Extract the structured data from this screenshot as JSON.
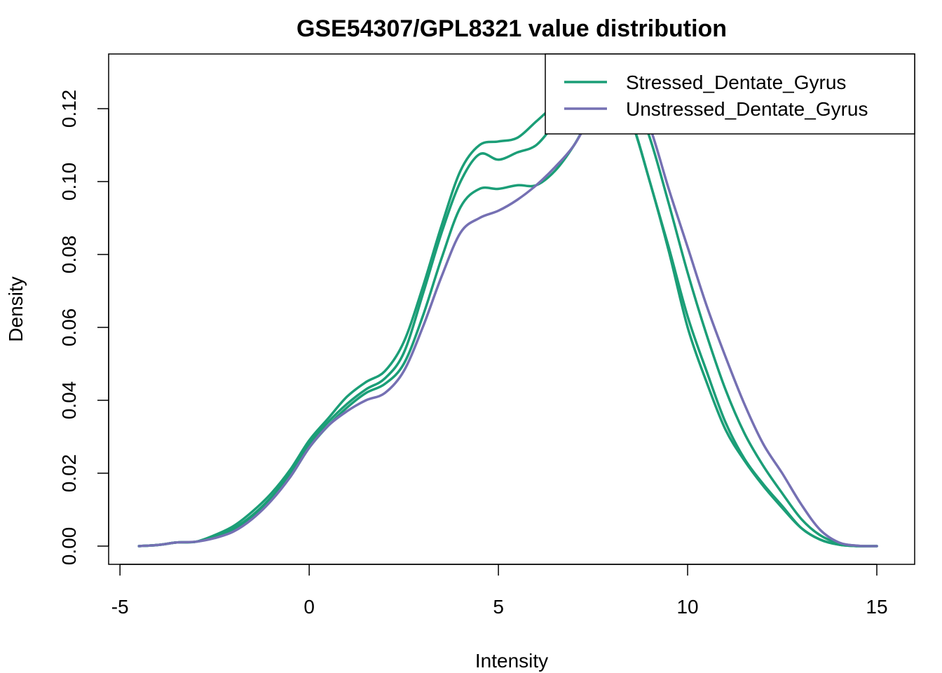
{
  "chart_data": {
    "type": "line",
    "title": "GSE54307/GPL8321 value distribution",
    "xlabel": "Intensity",
    "ylabel": "Density",
    "xlim": [
      -5.3,
      16.0
    ],
    "ylim": [
      -0.005,
      0.135
    ],
    "xticks": [
      -5,
      0,
      5,
      10,
      15
    ],
    "yticks": [
      0.0,
      0.02,
      0.04,
      0.06,
      0.08,
      0.1,
      0.12
    ],
    "xtick_labels": [
      "-5",
      "0",
      "5",
      "10",
      "15"
    ],
    "ytick_labels": [
      "0.00",
      "0.02",
      "0.04",
      "0.06",
      "0.08",
      "0.10",
      "0.12"
    ],
    "grid": false,
    "legend": {
      "position": "top-right",
      "entries": [
        {
          "label": "Stressed_Dentate_Gyrus",
          "color": "#1b9e77"
        },
        {
          "label": "Unstressed_Dentate_Gyrus",
          "color": "#7570b3"
        }
      ]
    },
    "series": [
      {
        "group": "Stressed_Dentate_Gyrus",
        "color": "#1b9e77",
        "points": [
          [
            -4.5,
            0.0
          ],
          [
            -4.0,
            0.0003
          ],
          [
            -3.5,
            0.001
          ],
          [
            -3.0,
            0.0012
          ],
          [
            -2.5,
            0.003
          ],
          [
            -2.0,
            0.0055
          ],
          [
            -1.5,
            0.0095
          ],
          [
            -1.0,
            0.0145
          ],
          [
            -0.5,
            0.021
          ],
          [
            0.0,
            0.029
          ],
          [
            0.5,
            0.035
          ],
          [
            1.0,
            0.041
          ],
          [
            1.5,
            0.045
          ],
          [
            2.0,
            0.048
          ],
          [
            2.5,
            0.056
          ],
          [
            3.0,
            0.071
          ],
          [
            3.5,
            0.088
          ],
          [
            4.0,
            0.103
          ],
          [
            4.5,
            0.11
          ],
          [
            5.0,
            0.111
          ],
          [
            5.5,
            0.112
          ],
          [
            6.0,
            0.1165
          ],
          [
            6.5,
            0.121
          ],
          [
            7.0,
            0.124
          ],
          [
            7.5,
            0.126
          ],
          [
            8.0,
            0.126
          ],
          [
            8.5,
            0.117
          ],
          [
            9.0,
            0.1
          ],
          [
            9.5,
            0.082
          ],
          [
            10.0,
            0.063
          ],
          [
            10.5,
            0.048
          ],
          [
            11.0,
            0.034
          ],
          [
            11.5,
            0.024
          ],
          [
            12.0,
            0.017
          ],
          [
            12.5,
            0.011
          ],
          [
            13.0,
            0.005
          ],
          [
            13.5,
            0.0018
          ],
          [
            14.0,
            0.0004
          ],
          [
            14.5,
            0.0
          ],
          [
            15.0,
            0.0
          ]
        ]
      },
      {
        "group": "Stressed_Dentate_Gyrus",
        "color": "#1b9e77",
        "points": [
          [
            -4.5,
            0.0
          ],
          [
            -4.0,
            0.0003
          ],
          [
            -3.5,
            0.001
          ],
          [
            -3.0,
            0.0012
          ],
          [
            -2.5,
            0.0025
          ],
          [
            -2.0,
            0.0048
          ],
          [
            -1.5,
            0.0085
          ],
          [
            -1.0,
            0.0135
          ],
          [
            -0.5,
            0.02
          ],
          [
            0.0,
            0.028
          ],
          [
            0.5,
            0.034
          ],
          [
            1.0,
            0.039
          ],
          [
            1.5,
            0.043
          ],
          [
            2.0,
            0.046
          ],
          [
            2.5,
            0.053
          ],
          [
            3.0,
            0.069
          ],
          [
            3.5,
            0.086
          ],
          [
            4.0,
            0.1
          ],
          [
            4.5,
            0.1075
          ],
          [
            5.0,
            0.106
          ],
          [
            5.5,
            0.108
          ],
          [
            6.0,
            0.11
          ],
          [
            6.5,
            0.116
          ],
          [
            7.0,
            0.122
          ],
          [
            7.5,
            0.125
          ],
          [
            8.0,
            0.125
          ],
          [
            8.5,
            0.117
          ],
          [
            9.0,
            0.1
          ],
          [
            9.5,
            0.081
          ],
          [
            10.0,
            0.06
          ],
          [
            10.5,
            0.045
          ],
          [
            11.0,
            0.032
          ],
          [
            11.5,
            0.0235
          ],
          [
            12.0,
            0.0165
          ],
          [
            12.5,
            0.0105
          ],
          [
            13.0,
            0.005
          ],
          [
            13.5,
            0.0018
          ],
          [
            14.0,
            0.0004
          ],
          [
            14.5,
            0.0
          ],
          [
            15.0,
            0.0
          ]
        ]
      },
      {
        "group": "Stressed_Dentate_Gyrus",
        "color": "#1b9e77",
        "points": [
          [
            -4.5,
            0.0
          ],
          [
            -4.0,
            0.0003
          ],
          [
            -3.5,
            0.001
          ],
          [
            -3.0,
            0.0012
          ],
          [
            -2.5,
            0.0025
          ],
          [
            -2.0,
            0.0045
          ],
          [
            -1.5,
            0.008
          ],
          [
            -1.0,
            0.013
          ],
          [
            -0.5,
            0.019
          ],
          [
            0.0,
            0.027
          ],
          [
            0.5,
            0.033
          ],
          [
            1.0,
            0.038
          ],
          [
            1.5,
            0.042
          ],
          [
            2.0,
            0.0445
          ],
          [
            2.5,
            0.05
          ],
          [
            3.0,
            0.063
          ],
          [
            3.5,
            0.079
          ],
          [
            4.0,
            0.093
          ],
          [
            4.5,
            0.098
          ],
          [
            5.0,
            0.098
          ],
          [
            5.5,
            0.099
          ],
          [
            6.0,
            0.099
          ],
          [
            6.5,
            0.103
          ],
          [
            7.0,
            0.11
          ],
          [
            7.5,
            0.119
          ],
          [
            8.0,
            0.125
          ],
          [
            8.5,
            0.125
          ],
          [
            9.0,
            0.112
          ],
          [
            9.5,
            0.094
          ],
          [
            10.0,
            0.075
          ],
          [
            10.5,
            0.058
          ],
          [
            11.0,
            0.043
          ],
          [
            11.5,
            0.031
          ],
          [
            12.0,
            0.022
          ],
          [
            12.5,
            0.0145
          ],
          [
            13.0,
            0.0075
          ],
          [
            13.5,
            0.003
          ],
          [
            14.0,
            0.0008
          ],
          [
            14.5,
            0.0001
          ],
          [
            15.0,
            0.0
          ]
        ]
      },
      {
        "group": "Unstressed_Dentate_Gyrus",
        "color": "#7570b3",
        "points": [
          [
            -4.5,
            0.0
          ],
          [
            -4.0,
            0.0003
          ],
          [
            -3.5,
            0.001
          ],
          [
            -3.0,
            0.0012
          ],
          [
            -2.5,
            0.0022
          ],
          [
            -2.0,
            0.004
          ],
          [
            -1.5,
            0.0075
          ],
          [
            -1.0,
            0.0125
          ],
          [
            -0.5,
            0.019
          ],
          [
            0.0,
            0.027
          ],
          [
            0.5,
            0.033
          ],
          [
            1.0,
            0.037
          ],
          [
            1.5,
            0.04
          ],
          [
            2.0,
            0.042
          ],
          [
            2.5,
            0.048
          ],
          [
            3.0,
            0.06
          ],
          [
            3.5,
            0.074
          ],
          [
            4.0,
            0.086
          ],
          [
            4.5,
            0.09
          ],
          [
            5.0,
            0.092
          ],
          [
            5.5,
            0.095
          ],
          [
            6.0,
            0.099
          ],
          [
            6.5,
            0.104
          ],
          [
            7.0,
            0.11
          ],
          [
            7.5,
            0.119
          ],
          [
            8.0,
            0.126
          ],
          [
            8.5,
            0.126
          ],
          [
            9.0,
            0.115
          ],
          [
            9.5,
            0.098
          ],
          [
            10.0,
            0.082
          ],
          [
            10.5,
            0.066
          ],
          [
            11.0,
            0.052
          ],
          [
            11.5,
            0.039
          ],
          [
            12.0,
            0.028
          ],
          [
            12.5,
            0.02
          ],
          [
            13.0,
            0.0115
          ],
          [
            13.5,
            0.0045
          ],
          [
            14.0,
            0.001
          ],
          [
            14.5,
            0.0001
          ],
          [
            15.0,
            0.0
          ]
        ]
      }
    ]
  }
}
